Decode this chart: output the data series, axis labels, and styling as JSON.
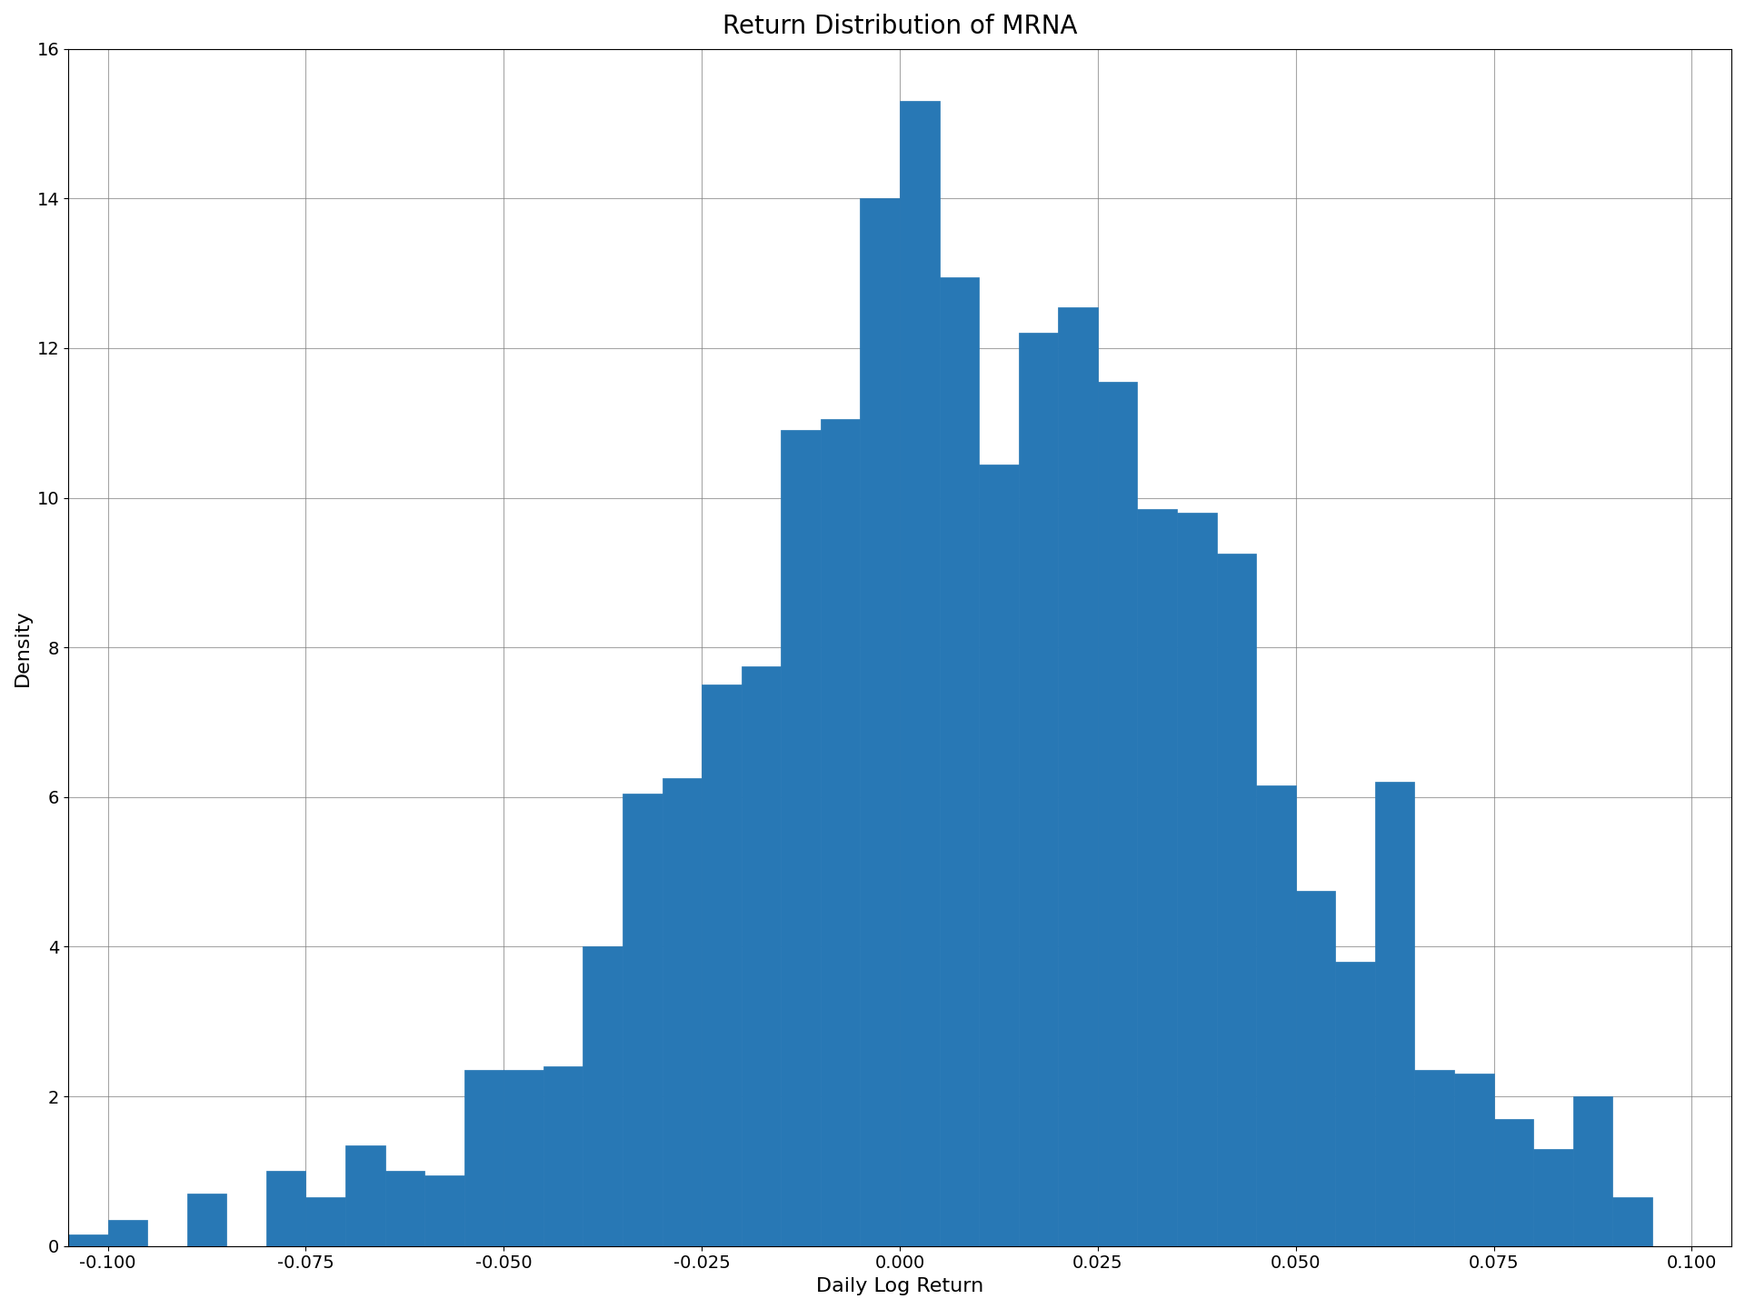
{
  "title": "Return Distribution of MRNA",
  "xlabel": "Daily Log Return",
  "ylabel": "Density",
  "bar_color": "#2878b5",
  "bar_edgecolor": "#2878b5",
  "xlim": [
    -0.105,
    0.105
  ],
  "ylim": [
    0,
    16
  ],
  "yticks": [
    0,
    2,
    4,
    6,
    8,
    10,
    12,
    14,
    16
  ],
  "xticks": [
    -0.1,
    -0.075,
    -0.05,
    -0.025,
    0.0,
    0.025,
    0.05,
    0.075,
    0.1
  ],
  "bin_width": 0.005,
  "bins_left": [
    -0.1,
    -0.095,
    -0.09,
    -0.085,
    -0.08,
    -0.075,
    -0.07,
    -0.065,
    -0.06,
    -0.055,
    -0.05,
    -0.045,
    -0.04,
    -0.035,
    -0.03,
    -0.025,
    -0.02,
    -0.015,
    -0.01,
    -0.005,
    0.0,
    0.005,
    0.01,
    0.015,
    0.02,
    0.025,
    0.03,
    0.035,
    0.04,
    0.045,
    0.05,
    0.055,
    0.06,
    0.065,
    0.07,
    0.075,
    0.08,
    0.085,
    0.09,
    0.095
  ],
  "heights": [
    0.15,
    0.35,
    0.0,
    0.7,
    0.0,
    1.0,
    0.65,
    1.35,
    1.0,
    0.95,
    2.35,
    2.35,
    2.4,
    4.0,
    6.05,
    6.25,
    7.5,
    7.75,
    10.9,
    11.05,
    14.0,
    15.3,
    12.95,
    10.45,
    12.2,
    12.55,
    11.55,
    9.85,
    9.8,
    9.25,
    6.15,
    4.75,
    3.8,
    6.2,
    2.35,
    2.3,
    1.7,
    1.3,
    2.0,
    0.65
  ],
  "title_fontsize": 20,
  "label_fontsize": 16,
  "tick_fontsize": 14,
  "figsize": [
    19.2,
    14.4
  ],
  "dpi": 100
}
